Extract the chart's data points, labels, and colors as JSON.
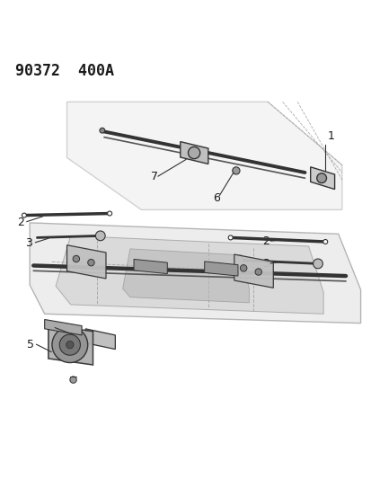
{
  "title": "90372  400A",
  "bg_color": "#ffffff",
  "line_color": "#1a1a1a",
  "label_color": "#1a1a1a",
  "title_fontsize": 12,
  "label_fontsize": 9
}
